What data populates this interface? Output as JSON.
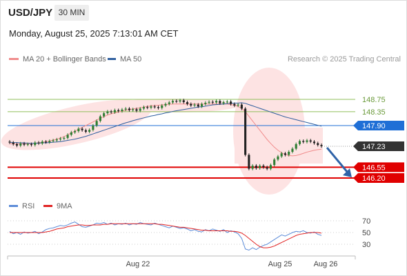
{
  "header": {
    "pair": "USD/JPY",
    "timeframe": "30 MIN",
    "datetime": "Monday, August 25, 2025 7:13:01 AM CET"
  },
  "legend": {
    "ma20_bb": "MA 20 + Bollinger Bands",
    "ma50": "MA 50",
    "credit": "Research © 2025 Trading Central"
  },
  "rsi_legend": {
    "rsi": "RSI",
    "ma9": "9MA"
  },
  "colors": {
    "resistance": "#8fbf5a",
    "pivot": "#1f6fd6",
    "support": "#e00000",
    "current": "#333333",
    "ma20": "#f08b8b",
    "ma50": "#2e5e9e",
    "bands": "#fde3e3",
    "rsi": "#5b8bd8",
    "rsi_ma": "#e02020",
    "up_candle": "#2e7d32",
    "down_candle": "#222222"
  },
  "chart_data": [
    {
      "type": "candlestick",
      "ylim": [
        145.7,
        149.3
      ],
      "x_ticks": [
        "Aug 22",
        "Aug 25",
        "Aug 26"
      ],
      "levels": [
        {
          "label": "148.75",
          "value": 148.75,
          "kind": "resistance"
        },
        {
          "label": "148.35",
          "value": 148.35,
          "kind": "resistance"
        },
        {
          "label": "147.90",
          "value": 147.9,
          "kind": "pivot"
        },
        {
          "label": "147.23",
          "value": 147.23,
          "kind": "current"
        },
        {
          "label": "146.55",
          "value": 146.55,
          "kind": "support"
        },
        {
          "label": "146.20",
          "value": 146.2,
          "kind": "support"
        }
      ],
      "close": [
        147.35,
        147.3,
        147.25,
        147.32,
        147.28,
        147.3,
        147.27,
        147.35,
        147.32,
        147.38,
        147.36,
        147.4,
        147.42,
        147.45,
        147.48,
        147.5,
        147.6,
        147.68,
        147.72,
        147.8,
        147.75,
        147.7,
        147.76,
        147.9,
        148.05,
        148.2,
        148.3,
        148.36,
        148.33,
        148.4,
        148.37,
        148.42,
        148.45,
        148.4,
        148.43,
        148.38,
        148.45,
        148.5,
        148.48,
        148.52,
        148.5,
        148.47,
        148.55,
        148.6,
        148.65,
        148.7,
        148.68,
        148.72,
        148.66,
        148.6,
        148.55,
        148.58,
        148.52,
        148.6,
        148.64,
        148.67,
        148.65,
        148.7,
        148.62,
        148.66,
        148.68,
        148.6,
        148.55,
        148.58,
        148.45,
        146.95,
        146.5,
        146.6,
        146.52,
        146.6,
        146.55,
        146.5,
        146.62,
        146.8,
        146.9,
        147.0,
        146.95,
        147.05,
        147.15,
        147.3,
        147.4,
        147.37,
        147.42,
        147.38,
        147.33,
        147.27,
        147.23
      ],
      "ma20": [
        147.32,
        147.3,
        147.3,
        147.31,
        147.31,
        147.31,
        147.32,
        147.33,
        147.34,
        147.36,
        147.38,
        147.4,
        147.43,
        147.46,
        147.5,
        147.54,
        147.6,
        147.66,
        147.72,
        147.78,
        147.84,
        147.9,
        147.96,
        148.02,
        148.08,
        148.14,
        148.19,
        148.24,
        148.28,
        148.31,
        148.34,
        148.37,
        148.4,
        148.42,
        148.44,
        148.46,
        148.48,
        148.5,
        148.52,
        148.54,
        148.55,
        148.56,
        148.57,
        148.58,
        148.59,
        148.6,
        148.6,
        148.6,
        148.6,
        148.6,
        148.6,
        148.6,
        148.6,
        148.6,
        148.6,
        148.6,
        148.6,
        148.6,
        148.6,
        148.6,
        148.6,
        148.58,
        148.56,
        148.52,
        148.46,
        148.35,
        148.2,
        148.05,
        147.9,
        147.75,
        147.6,
        147.45,
        147.32,
        147.2,
        147.1,
        147.02,
        146.96,
        146.93,
        146.92,
        146.93,
        146.96,
        147.0,
        147.04,
        147.07,
        147.1,
        147.12,
        147.13
      ],
      "ma50": [
        147.36,
        147.35,
        147.35,
        147.34,
        147.34,
        147.33,
        147.33,
        147.33,
        147.33,
        147.34,
        147.34,
        147.35,
        147.36,
        147.37,
        147.38,
        147.4,
        147.42,
        147.44,
        147.46,
        147.49,
        147.52,
        147.55,
        147.59,
        147.63,
        147.67,
        147.71,
        147.75,
        147.79,
        147.83,
        147.87,
        147.91,
        147.95,
        147.99,
        148.02,
        148.06,
        148.09,
        148.12,
        148.15,
        148.18,
        148.21,
        148.23,
        148.26,
        148.28,
        148.31,
        148.33,
        148.36,
        148.38,
        148.4,
        148.42,
        148.44,
        148.46,
        148.48,
        148.5,
        148.51,
        148.53,
        148.55,
        148.57,
        148.58,
        148.59,
        148.6,
        148.61,
        148.62,
        148.63,
        148.63,
        148.64,
        148.62,
        148.58,
        148.54,
        148.5,
        148.46,
        148.42,
        148.38,
        148.34,
        148.3,
        148.26,
        148.22,
        148.18,
        148.15,
        148.12,
        148.09,
        148.06,
        148.03,
        148.0,
        147.97,
        147.94,
        147.91,
        147.88
      ]
    },
    {
      "type": "line",
      "ylim": [
        15,
        85
      ],
      "y_ticks": [
        "70",
        "50",
        "30"
      ],
      "rsi": [
        52,
        48,
        50,
        47,
        51,
        49,
        50,
        52,
        48,
        51,
        55,
        57,
        58,
        60,
        62,
        61,
        63,
        66,
        68,
        64,
        60,
        59,
        61,
        63,
        66,
        65,
        67,
        64,
        66,
        63,
        65,
        64,
        66,
        63,
        65,
        64,
        67,
        65,
        64,
        63,
        66,
        64,
        62,
        60,
        58,
        61,
        59,
        57,
        58,
        56,
        53,
        55,
        52,
        51,
        55,
        53,
        56,
        54,
        52,
        55,
        50,
        53,
        51,
        48,
        40,
        22,
        20,
        24,
        21,
        25,
        28,
        30,
        34,
        38,
        42,
        46,
        44,
        47,
        50,
        52,
        51,
        53,
        50,
        49,
        51,
        47,
        45
      ],
      "ma9": [
        50,
        50,
        50,
        50,
        50,
        50,
        50,
        50,
        50,
        50,
        51,
        52,
        54,
        56,
        57,
        58,
        60,
        61,
        62,
        63,
        63,
        62,
        62,
        63,
        63,
        63,
        64,
        64,
        65,
        65,
        65,
        65,
        65,
        65,
        65,
        65,
        65,
        65,
        65,
        65,
        65,
        64,
        64,
        63,
        62,
        61,
        60,
        59,
        59,
        58,
        57,
        56,
        55,
        54,
        54,
        53,
        53,
        53,
        53,
        53,
        53,
        52,
        52,
        51,
        49,
        45,
        40,
        35,
        30,
        26,
        24,
        24,
        25,
        27,
        30,
        33,
        36,
        39,
        42,
        45,
        47,
        48,
        49,
        50,
        50,
        50,
        49
      ]
    }
  ]
}
